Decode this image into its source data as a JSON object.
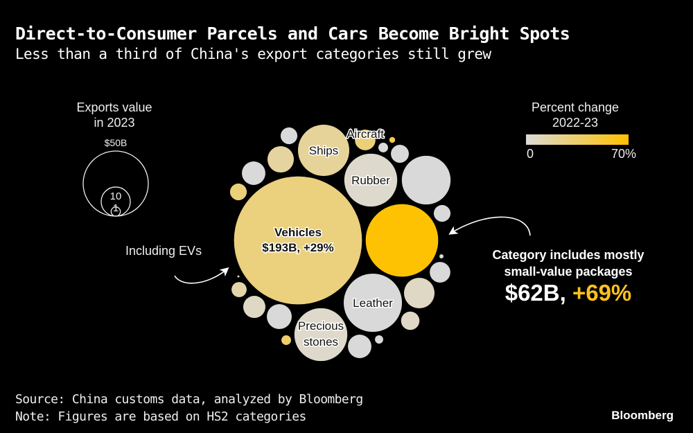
{
  "title": "Direct-to-Consumer Parcels and Cars Become Bright Spots",
  "subtitle": "Less than a third of China's export categories still grew",
  "footer": {
    "source": "Source: China customs data, analyzed by Bloomberg",
    "note": "Note: Figures are based on HS2 categories",
    "brand": "Bloomberg"
  },
  "annotations": {
    "ev": "Including EVs",
    "category_line1": "Category includes mostly",
    "category_line2": "small-value packages",
    "parcel_value": "$62B,",
    "parcel_pct": "+69%"
  },
  "chart_data": {
    "type": "bubble",
    "size_legend": {
      "title_line1": "Exports value",
      "title_line2": "in 2023",
      "labels": [
        "$50B",
        "10",
        "1"
      ],
      "values_b": [
        50,
        10,
        1
      ]
    },
    "color_legend": {
      "title_line1": "Percent change",
      "title_line2": "2022-23",
      "min_label": "0",
      "max_label": "70%",
      "range": [
        0,
        70
      ],
      "colors": [
        "#dcdad6",
        "#ffc200"
      ],
      "negative_color": "#d9d9d9"
    },
    "bubbles": [
      {
        "label": "Vehicles",
        "sublabel": "$193B, +29%",
        "value_b": 193,
        "pct": 29
      },
      {
        "label": "",
        "value_b": 62,
        "pct": 69
      },
      {
        "label": "Ships",
        "value_b": 31,
        "pct": 20
      },
      {
        "label": "Aircraft",
        "value_b": 5,
        "pct": 30
      },
      {
        "label": "Rubber",
        "value_b": 33,
        "pct": 3
      },
      {
        "label": "Leather",
        "value_b": 40,
        "pct": -2
      },
      {
        "label": "Precious",
        "label2": "stones",
        "value_b": 33,
        "pct": 4
      },
      {
        "label": "",
        "value_b": 28,
        "pct": -3
      },
      {
        "label": "",
        "value_b": 3.3,
        "pct": -2
      },
      {
        "label": "",
        "value_b": 0.2,
        "pct": -5
      },
      {
        "label": "",
        "value_b": 5,
        "pct": -4
      },
      {
        "label": "",
        "value_b": 11,
        "pct": 6
      },
      {
        "label": "",
        "value_b": 4,
        "pct": 5
      },
      {
        "label": "",
        "value_b": 0.8,
        "pct": -3
      },
      {
        "label": "",
        "value_b": 6.5,
        "pct": -4
      },
      {
        "label": "",
        "value_b": 1.1,
        "pct": 35
      },
      {
        "label": "",
        "value_b": 7.3,
        "pct": -3
      },
      {
        "label": "",
        "value_b": 5.8,
        "pct": 6
      },
      {
        "label": "",
        "value_b": 2.7,
        "pct": 15
      },
      {
        "label": "",
        "value_b": 0.05,
        "pct": 10
      },
      {
        "label": "",
        "value_b": 3.3,
        "pct": 30
      },
      {
        "label": "",
        "value_b": 6.5,
        "pct": -2
      },
      {
        "label": "",
        "value_b": 8.2,
        "pct": 18
      },
      {
        "label": "",
        "value_b": 3.3,
        "pct": -3
      },
      {
        "label": "",
        "value_b": 0.4,
        "pct": 45
      },
      {
        "label": "",
        "value_b": 1.1,
        "pct": -4
      },
      {
        "label": "",
        "value_b": 3.8,
        "pct": -4
      }
    ]
  }
}
